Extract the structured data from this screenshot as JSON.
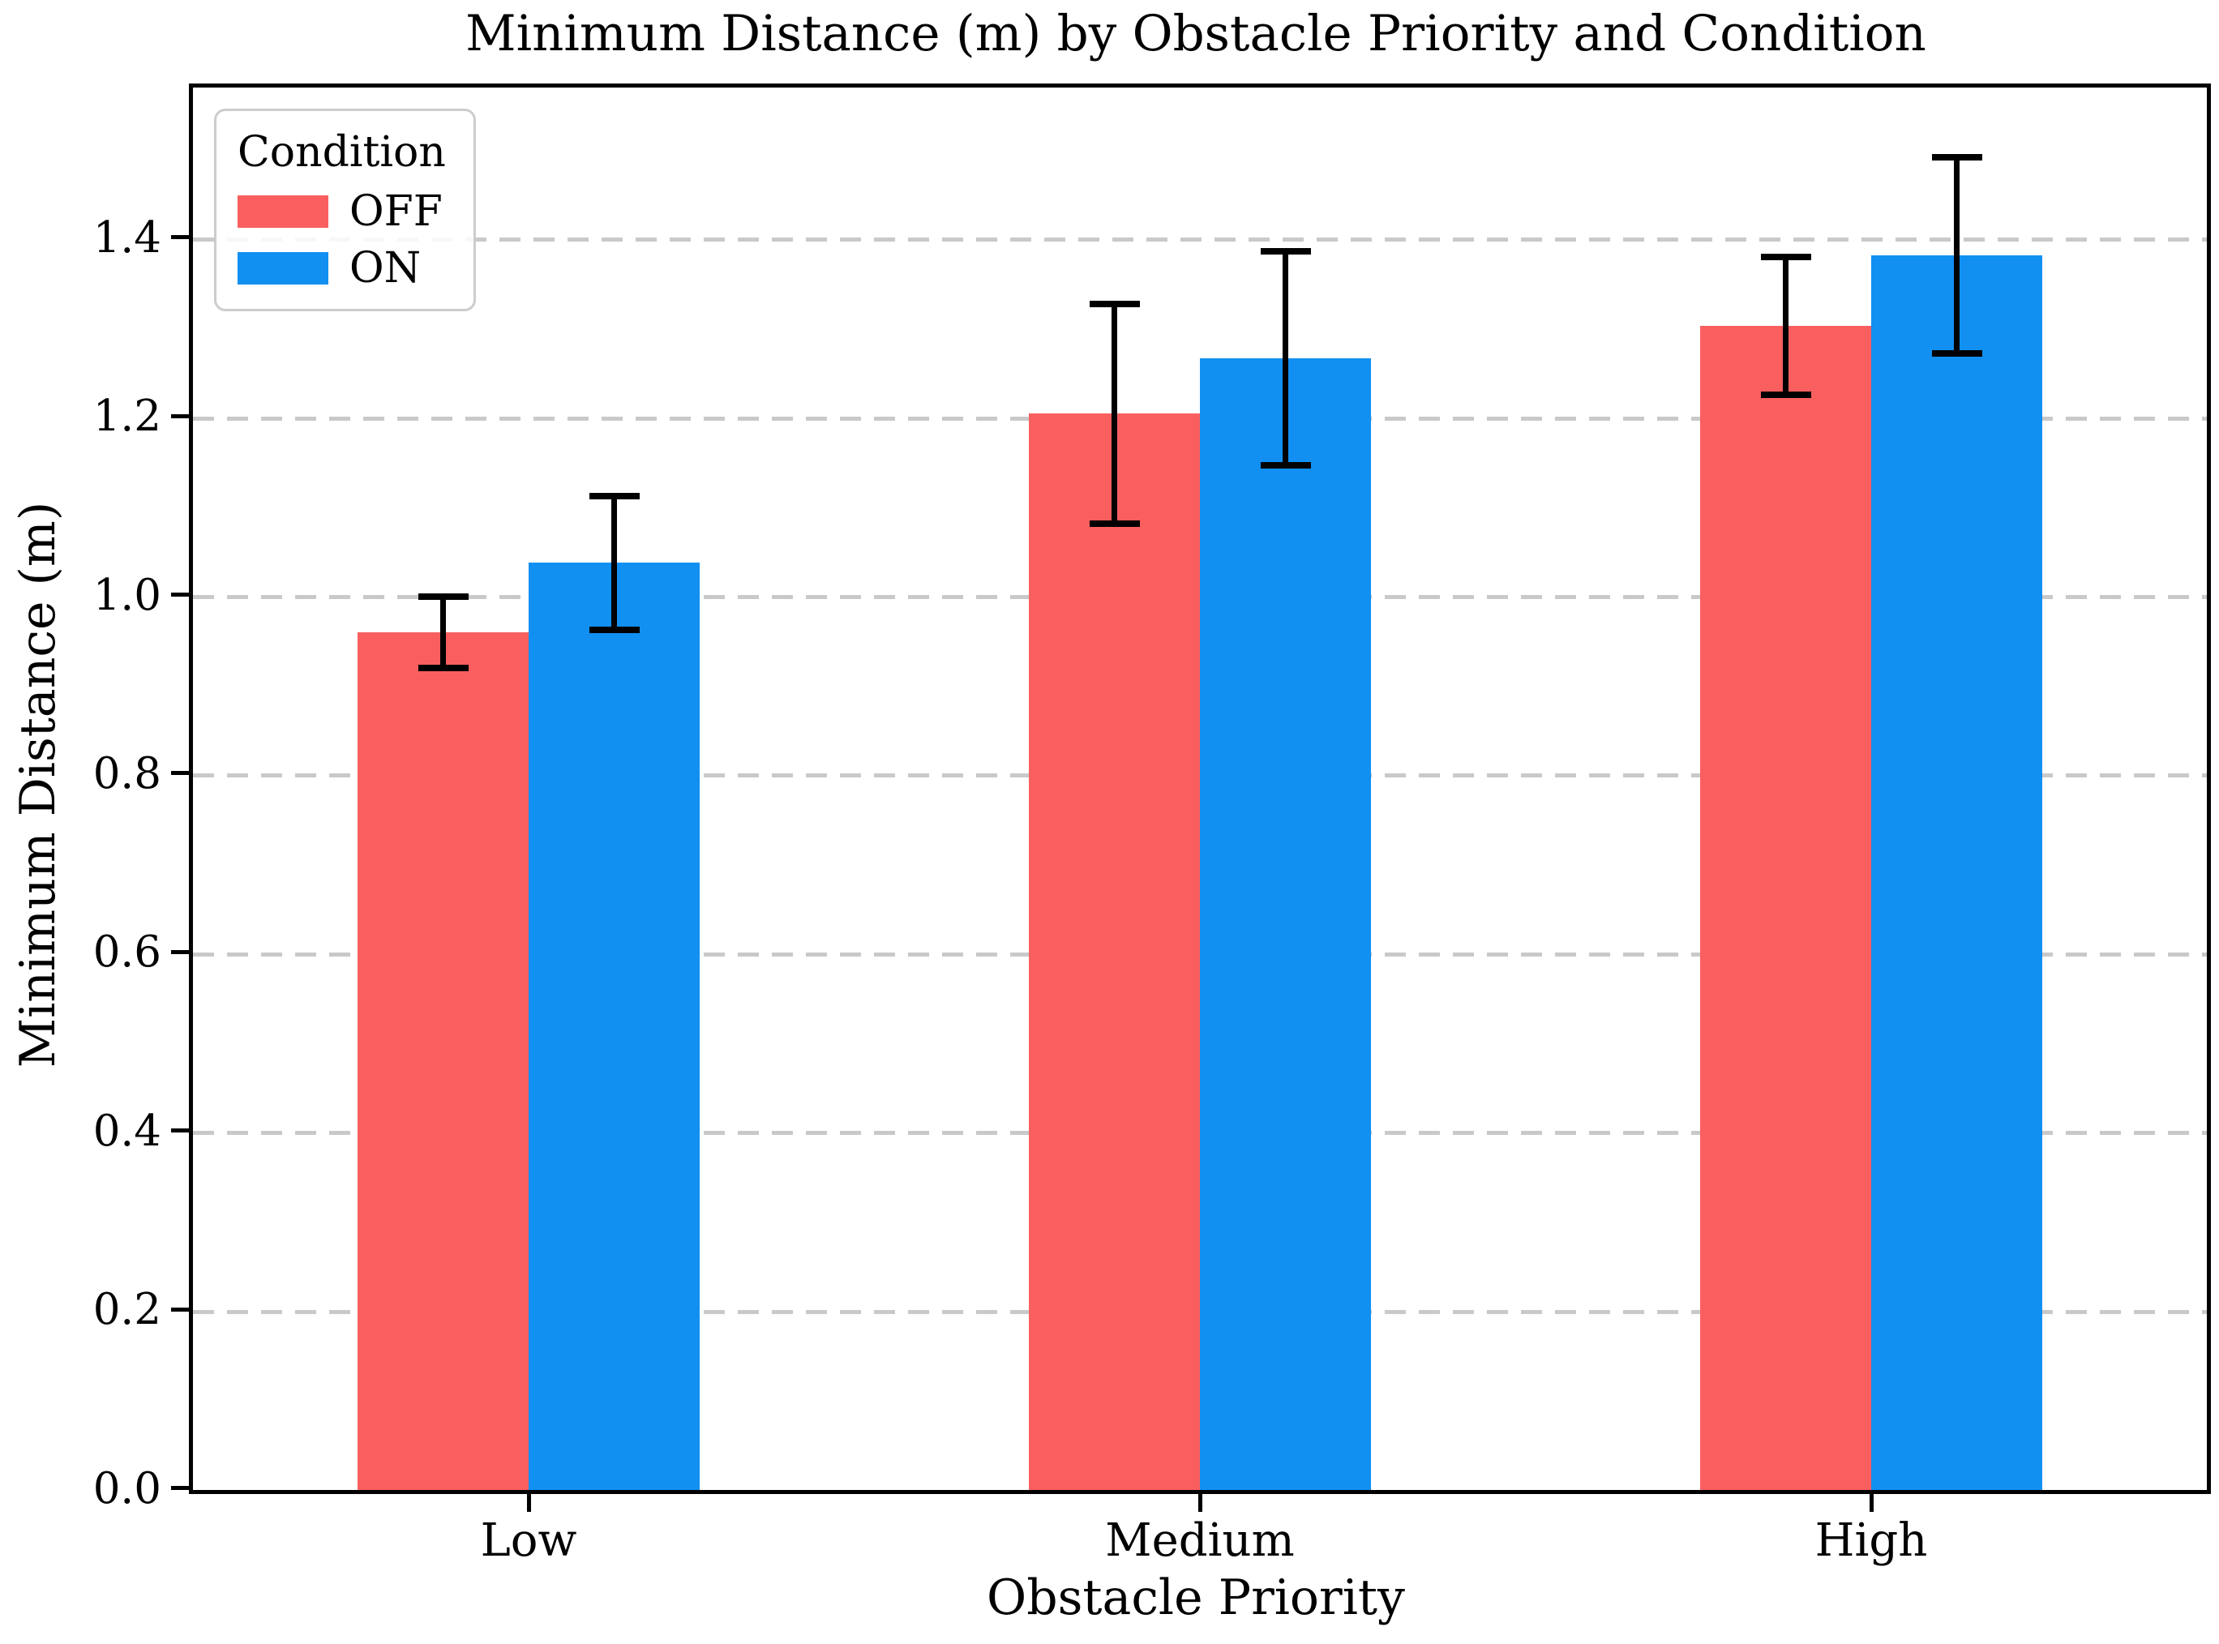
{
  "chart_data": {
    "type": "bar",
    "title": "Minimum Distance (m) by Obstacle Priority and Condition",
    "xlabel": "Obstacle Priority",
    "ylabel": "Minimum Distance (m)",
    "categories": [
      "Low",
      "Medium",
      "High"
    ],
    "series": [
      {
        "name": "OFF",
        "color": "#FA5F5F",
        "values": [
          0.96,
          1.205,
          1.303
        ],
        "errors": [
          0.04,
          0.123,
          0.077
        ]
      },
      {
        "name": "ON",
        "color": "#1190F2",
        "values": [
          1.038,
          1.267,
          1.382
        ],
        "errors": [
          0.075,
          0.12,
          0.11
        ]
      }
    ],
    "ylim": [
      0,
      1.57
    ],
    "yticks": [
      "0.0",
      "0.2",
      "0.4",
      "0.6",
      "0.8",
      "1.0",
      "1.2",
      "1.4"
    ],
    "legend_title": "Condition",
    "legend_position": "upper left",
    "grid": {
      "axis": "y",
      "style": "dashed",
      "color": "#c9c9c9"
    },
    "error_bar_color": "#000000",
    "axis_color": "#000000"
  }
}
